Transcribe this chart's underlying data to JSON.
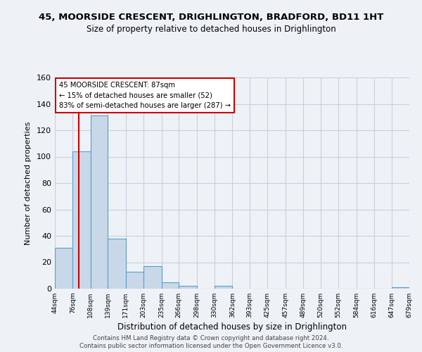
{
  "title": "45, MOORSIDE CRESCENT, DRIGHLINGTON, BRADFORD, BD11 1HT",
  "subtitle": "Size of property relative to detached houses in Drighlington",
  "xlabel": "Distribution of detached houses by size in Drighlington",
  "ylabel": "Number of detached properties",
  "bin_edges": [
    44,
    76,
    108,
    139,
    171,
    203,
    235,
    266,
    298,
    330,
    362,
    393,
    425,
    457,
    489,
    520,
    552,
    584,
    616,
    647,
    679
  ],
  "bin_labels": [
    "44sqm",
    "76sqm",
    "108sqm",
    "139sqm",
    "171sqm",
    "203sqm",
    "235sqm",
    "266sqm",
    "298sqm",
    "330sqm",
    "362sqm",
    "393sqm",
    "425sqm",
    "457sqm",
    "489sqm",
    "520sqm",
    "552sqm",
    "584sqm",
    "616sqm",
    "647sqm",
    "679sqm"
  ],
  "counts": [
    31,
    104,
    131,
    38,
    13,
    17,
    5,
    2,
    0,
    2,
    0,
    0,
    0,
    0,
    0,
    0,
    0,
    0,
    0,
    1
  ],
  "bar_color": "#c8d8e8",
  "bar_edge_color": "#5a9ec8",
  "property_line_x": 87,
  "property_line_color": "#cc0000",
  "annotation_title": "45 MOORSIDE CRESCENT: 87sqm",
  "annotation_line1": "← 15% of detached houses are smaller (52)",
  "annotation_line2": "83% of semi-detached houses are larger (287) →",
  "annotation_box_color": "#ffffff",
  "annotation_box_edge": "#cc0000",
  "ylim": [
    0,
    160
  ],
  "yticks": [
    0,
    20,
    40,
    60,
    80,
    100,
    120,
    140,
    160
  ],
  "background_color": "#eef2f7",
  "grid_color": "#c8d0dc",
  "footer1": "Contains HM Land Registry data © Crown copyright and database right 2024.",
  "footer2": "Contains public sector information licensed under the Open Government Licence v3.0."
}
